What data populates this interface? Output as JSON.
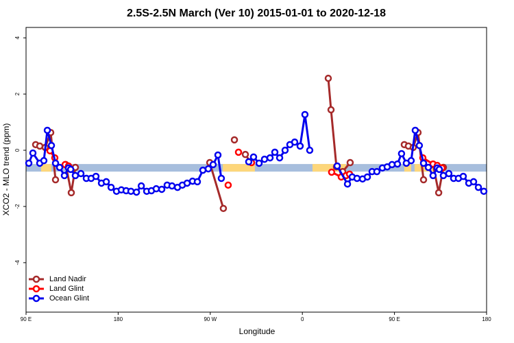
{
  "chart_data": {
    "type": "line",
    "title": "2.5S-2.5N March (Ver 10)   2015-01-01 to 2020-12-18",
    "x_label": "Longitude",
    "y_label": "XCO2 - MLO trend (ppm)",
    "xlim": [
      90,
      540
    ],
    "ylim": [
      -5.76,
      4.37
    ],
    "xticks": [
      {
        "value": 90,
        "label": "90 E"
      },
      180,
      {
        "value": 270,
        "label": "90 W"
      },
      {
        "value": 360,
        "label": "0"
      },
      {
        "value": 450,
        "label": "90 E"
      },
      {
        "value": 540,
        "label": "180"
      }
    ],
    "yticks": [
      -4,
      -2,
      0,
      2,
      4
    ],
    "legend": "bottom-left",
    "band": {
      "y": [
        -0.76,
        -0.49
      ],
      "color": "#a7bedd",
      "land_x": [
        [
          104.7,
          114.8
        ],
        [
          282.2,
          313.6
        ],
        [
          369.9,
          402.7
        ],
        [
          459.6,
          466.3
        ],
        [
          469.6,
          498.5
        ]
      ],
      "land_color": "#fdd67a"
    },
    "series": [
      {
        "name": "Land Nadir",
        "color": "#a52a2a",
        "x": [
          99.4,
          103.4,
          108.7,
          114.1,
          118.8,
          null,
          128.8,
          134.2,
          138.2,
          null,
          269.5,
          282.8,
          null,
          293.6,
          null,
          304.3,
          309.0,
          null,
          385.3,
          388.0,
          393.3,
          399.4,
          406.7,
          null,
          459.6,
          463.6,
          468.3,
          473.0,
          478.4,
          null,
          487.7,
          493.2,
          497.8
        ],
        "values": [
          0.2,
          0.15,
          0.1,
          0.63,
          -1.05,
          null,
          -0.51,
          -1.51,
          -0.61,
          null,
          -0.44,
          -2.07,
          null,
          0.37,
          null,
          -0.15,
          -0.41,
          null,
          2.56,
          1.44,
          -0.59,
          -0.76,
          -0.44,
          null,
          0.2,
          0.15,
          0.1,
          0.63,
          -1.05,
          null,
          -0.51,
          -1.51,
          -0.61
        ]
      },
      {
        "name": "Land Glint",
        "color": "#ff0000",
        "x": [
          113.4,
          118.1,
          null,
          128.2,
          131.5,
          null,
          287.5,
          null,
          297.6,
          null,
          310.3,
          null,
          388.6,
          398.0,
          402.7,
          406.1,
          null,
          477.7,
          487.7,
          491.8,
          496.4
        ],
        "values": [
          -0.02,
          -0.27,
          null,
          -0.51,
          -0.56,
          null,
          -1.24,
          null,
          -0.07,
          null,
          -0.44,
          null,
          -0.78,
          -0.95,
          -0.9,
          -0.85,
          null,
          -0.27,
          -0.49,
          -0.54,
          -0.63
        ]
      },
      {
        "name": "Ocean Glint",
        "color": "#0000ee",
        "x": [
          92.7,
          96.7,
          103.4,
          107.4,
          110.8,
          114.8,
          118.8,
          122.8,
          127.5,
          131.5,
          133.6,
          138.2,
          143.6,
          148.9,
          153.6,
          158.3,
          163.7,
          168.4,
          173.1,
          178.4,
          183.1,
          187.8,
          192.5,
          197.9,
          202.6,
          207.9,
          212.5,
          217.2,
          222.6,
          227.9,
          232.6,
          238.0,
          242.7,
          247.4,
          252.7,
          257.4,
          262.8,
          268.1,
          272.8,
          277.5,
          280.8,
          null,
          307.6,
          312.3,
          317.7,
          323.0,
          328.4,
          333.1,
          337.8,
          343.1,
          347.8,
          352.5,
          357.8,
          362.5,
          367.2,
          null,
          394.0,
          404.1,
          408.7,
          413.4,
          418.8,
          423.5,
          428.1,
          432.8,
          438.2,
          442.9,
          447.6,
          452.9,
          456.9,
          461.6,
          466.3,
          470.3,
          474.3,
          478.4,
          483.1,
          487.7,
          491.8,
          493.8,
          497.8,
          503.1,
          507.8,
          512.5,
          517.2,
          522.6,
          527.3,
          532.0,
          537.3
        ],
        "values": [
          -0.46,
          -0.1,
          -0.46,
          -0.37,
          0.71,
          0.17,
          -0.46,
          -0.61,
          -0.9,
          -0.63,
          -0.68,
          -0.9,
          -0.83,
          -1.0,
          -1.0,
          -0.93,
          -1.17,
          -1.12,
          -1.32,
          -1.46,
          -1.41,
          -1.44,
          -1.46,
          -1.49,
          -1.27,
          -1.46,
          -1.44,
          -1.37,
          -1.39,
          -1.24,
          -1.27,
          -1.32,
          -1.24,
          -1.17,
          -1.1,
          -1.12,
          -0.71,
          -0.66,
          -0.51,
          -0.17,
          -1.0,
          null,
          -0.41,
          -0.24,
          -0.46,
          -0.32,
          -0.27,
          -0.07,
          -0.27,
          0.0,
          0.2,
          0.29,
          0.15,
          1.27,
          0.0,
          null,
          -0.56,
          -1.2,
          -0.95,
          -1.0,
          -1.02,
          -0.95,
          -0.76,
          -0.76,
          -0.63,
          -0.59,
          -0.51,
          -0.49,
          -0.12,
          -0.46,
          -0.37,
          0.71,
          0.17,
          -0.46,
          -0.61,
          -0.9,
          -0.63,
          -0.68,
          -0.9,
          -0.83,
          -1.0,
          -1.0,
          -0.93,
          -1.17,
          -1.12,
          -1.32,
          -1.46
        ]
      }
    ]
  }
}
